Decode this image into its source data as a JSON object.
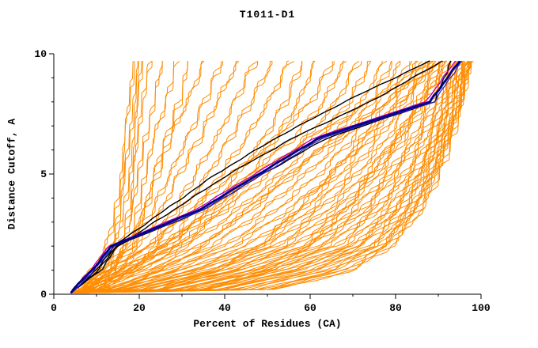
{
  "chart_data": {
    "type": "line",
    "title": "T1011-D1",
    "xlabel": "Percent of Residues (CA)",
    "ylabel": "Distance Cutoff, A",
    "xlim": [
      0,
      100
    ],
    "ylim": [
      0,
      10
    ],
    "x_ticks_major": [
      0,
      20,
      40,
      60,
      80,
      100
    ],
    "x_ticks_minor": [
      10,
      30,
      50,
      70,
      90
    ],
    "y_ticks_major": [
      0,
      5,
      10
    ],
    "y_ticks_minor": [
      1,
      2,
      3,
      4,
      6,
      7,
      8,
      9
    ],
    "grid": false,
    "legend": "none",
    "x_origin": 4,
    "control_y": [
      0.2,
      1,
      2,
      3.5,
      5,
      6.5,
      8,
      9.7
    ],
    "colors": {
      "models": "#ff8c00",
      "reference": "#000000",
      "magenta": "#bb00bb",
      "blue_thin": "#2222cc",
      "blue_main": "#00008b"
    },
    "series": {
      "models": [
        [
          5,
          9,
          12,
          14,
          15,
          16,
          17,
          18
        ],
        [
          5,
          10,
          13,
          15,
          16,
          17,
          18,
          19
        ],
        [
          6,
          11,
          14,
          16,
          17,
          18,
          19,
          20
        ],
        [
          6,
          12,
          15,
          17,
          18,
          19,
          20,
          22
        ],
        [
          7,
          12,
          16,
          18,
          19,
          21,
          23,
          25
        ],
        [
          7,
          13,
          17,
          19,
          21,
          23,
          26,
          28
        ],
        [
          8,
          14,
          18,
          21,
          23,
          26,
          29,
          31
        ],
        [
          6,
          12,
          17,
          21,
          24,
          27,
          31,
          35
        ],
        [
          7,
          13,
          18,
          23,
          27,
          31,
          35,
          39
        ],
        [
          7,
          14,
          20,
          25,
          29,
          34,
          38,
          43
        ],
        [
          8,
          15,
          22,
          28,
          33,
          38,
          42,
          47
        ],
        [
          8,
          16,
          24,
          30,
          36,
          41,
          46,
          51
        ],
        [
          9,
          17,
          26,
          33,
          39,
          45,
          50,
          55
        ],
        [
          9,
          18,
          28,
          36,
          43,
          49,
          54,
          58
        ],
        [
          10,
          20,
          30,
          39,
          46,
          52,
          57,
          61
        ],
        [
          8,
          14,
          22,
          32,
          42,
          52,
          60,
          65
        ],
        [
          9,
          16,
          25,
          36,
          46,
          56,
          63,
          68
        ],
        [
          10,
          18,
          28,
          40,
          50,
          59,
          66,
          71
        ],
        [
          10,
          20,
          31,
          43,
          53,
          62,
          69,
          74
        ],
        [
          11,
          22,
          34,
          46,
          56,
          65,
          72,
          77
        ],
        [
          12,
          24,
          37,
          49,
          59,
          68,
          74,
          79
        ],
        [
          12,
          26,
          40,
          52,
          62,
          70,
          76,
          81
        ],
        [
          13,
          28,
          42,
          55,
          65,
          72,
          78,
          83
        ],
        [
          14,
          30,
          45,
          58,
          67,
          74,
          80,
          85
        ],
        [
          15,
          32,
          48,
          60,
          69,
          76,
          82,
          86
        ],
        [
          16,
          34,
          50,
          62,
          71,
          78,
          83,
          88
        ],
        [
          17,
          36,
          52,
          64,
          73,
          80,
          85,
          89
        ],
        [
          18,
          38,
          54,
          66,
          75,
          81,
          86,
          90
        ],
        [
          20,
          40,
          56,
          68,
          76,
          82,
          87,
          91
        ],
        [
          22,
          42,
          58,
          70,
          78,
          84,
          88,
          92
        ],
        [
          24,
          44,
          60,
          72,
          79,
          85,
          89,
          93
        ],
        [
          26,
          46,
          62,
          73,
          80,
          86,
          90,
          93
        ],
        [
          28,
          48,
          64,
          75,
          82,
          87,
          91,
          94
        ],
        [
          30,
          50,
          66,
          76,
          83,
          88,
          91,
          94
        ],
        [
          32,
          52,
          68,
          78,
          84,
          89,
          92,
          95
        ],
        [
          34,
          54,
          70,
          79,
          85,
          89,
          92,
          95
        ],
        [
          36,
          56,
          71,
          80,
          86,
          90,
          93,
          96
        ],
        [
          38,
          58,
          72,
          81,
          86,
          90,
          93,
          96
        ],
        [
          40,
          60,
          74,
          82,
          87,
          91,
          94,
          96
        ],
        [
          42,
          62,
          75,
          83,
          88,
          91,
          94,
          97
        ],
        [
          45,
          64,
          76,
          84,
          88,
          92,
          94,
          97
        ],
        [
          48,
          66,
          77,
          84,
          89,
          92,
          95,
          97
        ],
        [
          50,
          68,
          78,
          85,
          89,
          92,
          95,
          97
        ],
        [
          52,
          70,
          79,
          86,
          90,
          93,
          95,
          97
        ],
        [
          35,
          50,
          60,
          68,
          74,
          80,
          86,
          92
        ],
        [
          25,
          38,
          48,
          57,
          65,
          73,
          81,
          90
        ],
        [
          15,
          25,
          35,
          45,
          55,
          66,
          78,
          89
        ],
        [
          10,
          17,
          26,
          37,
          48,
          60,
          74,
          88
        ]
      ],
      "reference": [
        [
          5,
          10,
          14,
          26,
          38,
          52,
          68,
          88
        ],
        [
          5,
          11,
          15,
          28,
          41,
          56,
          74,
          91
        ],
        [
          5,
          10.5,
          14.5,
          35,
          49,
          64,
          89,
          93
        ]
      ],
      "magenta": [
        4.5,
        8.5,
        13,
        33,
        47,
        61,
        87,
        94
      ],
      "blue_thin": [
        5,
        9.5,
        14,
        35,
        49,
        63,
        89,
        95.5
      ],
      "blue_main": [
        4.5,
        9,
        13.5,
        34,
        48,
        62,
        88,
        95
      ]
    }
  }
}
